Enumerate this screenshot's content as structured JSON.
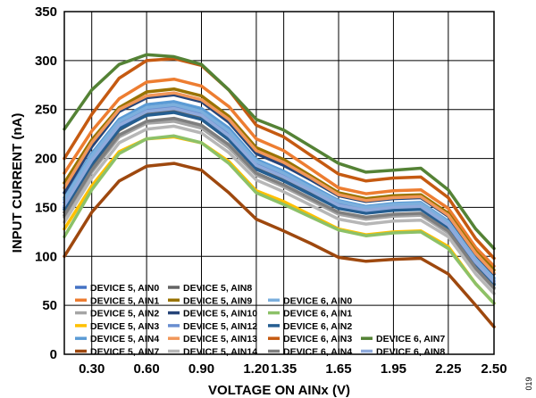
{
  "chart_data": {
    "type": "line",
    "xlabel": "VOLTAGE ON AINx (V)",
    "ylabel": "INPUT CURRENT (nA)",
    "xlim": [
      0.15,
      2.5
    ],
    "ylim": [
      0,
      350
    ],
    "x_ticks": [
      0.3,
      0.6,
      0.9,
      1.2,
      1.35,
      1.65,
      1.95,
      2.25,
      2.5
    ],
    "x_tick_labels": [
      "0.30",
      "0.60",
      "0.90",
      "1.20",
      "1.35",
      "1.65",
      "1.95",
      "2.25",
      "2.50"
    ],
    "y_ticks": [
      0,
      50,
      100,
      150,
      200,
      250,
      300,
      350
    ],
    "grid": true,
    "legend_position": "bottom-left",
    "figure_id": "019",
    "x": [
      0.15,
      0.3,
      0.45,
      0.6,
      0.75,
      0.9,
      1.05,
      1.2,
      1.35,
      1.5,
      1.65,
      1.8,
      1.95,
      2.1,
      2.25,
      2.4,
      2.5
    ],
    "series": [
      {
        "name": "DEVICE 5, AIN0",
        "color": "#4472c4",
        "values": [
          150,
          196,
          232,
          248,
          251,
          244,
          224,
          194,
          181,
          166,
          152,
          147,
          150,
          151,
          132,
          94,
          74
        ]
      },
      {
        "name": "DEVICE 5, AIN1",
        "color": "#ed7d31",
        "values": [
          185,
          228,
          261,
          278,
          281,
          274,
          253,
          220,
          208,
          189,
          170,
          164,
          167,
          168,
          149,
          109,
          90
        ]
      },
      {
        "name": "DEVICE 5, AIN2",
        "color": "#a5a5a5",
        "values": [
          140,
          186,
          222,
          236,
          238,
          231,
          211,
          183,
          171,
          157,
          143,
          138,
          141,
          142,
          124,
          87,
          67
        ]
      },
      {
        "name": "DEVICE 5, AIN3",
        "color": "#ffc000",
        "values": [
          128,
          172,
          207,
          220,
          222,
          216,
          197,
          167,
          156,
          142,
          128,
          122,
          125,
          126,
          110,
          72,
          52
        ]
      },
      {
        "name": "DEVICE 5, AIN4",
        "color": "#5b9bd5",
        "values": [
          160,
          205,
          240,
          255,
          258,
          251,
          231,
          199,
          187,
          172,
          157,
          151,
          154,
          155,
          136,
          98,
          78
        ]
      },
      {
        "name": "DEVICE 5, AIN7",
        "color": "#9e480e",
        "values": [
          100,
          145,
          177,
          192,
          195,
          188,
          165,
          138,
          126,
          113,
          99,
          95,
          97,
          98,
          82,
          50,
          28
        ]
      },
      {
        "name": "DEVICE 5, AIN8",
        "color": "#636363",
        "values": [
          145,
          192,
          229,
          245,
          248,
          241,
          220,
          190,
          178,
          164,
          150,
          145,
          148,
          149,
          130,
          92,
          72
        ]
      },
      {
        "name": "DEVICE 5, AIN9",
        "color": "#997300",
        "values": [
          175,
          219,
          252,
          268,
          271,
          264,
          243,
          211,
          199,
          182,
          165,
          159,
          162,
          163,
          144,
          105,
          86
        ]
      },
      {
        "name": "DEVICE 5, AIN10",
        "color": "#264478",
        "values": [
          165,
          212,
          248,
          262,
          265,
          258,
          237,
          205,
          193,
          178,
          162,
          156,
          159,
          160,
          141,
          102,
          82
        ]
      },
      {
        "name": "DEVICE 5, AIN12",
        "color": "#698ed0",
        "values": [
          155,
          200,
          236,
          250,
          253,
          246,
          226,
          195,
          183,
          169,
          154,
          148,
          151,
          152,
          133,
          95,
          75
        ]
      },
      {
        "name": "DEVICE 5, AIN13",
        "color": "#f1975a",
        "values": [
          170,
          216,
          250,
          264,
          267,
          260,
          240,
          208,
          196,
          180,
          163,
          157,
          160,
          161,
          142,
          103,
          83
        ]
      },
      {
        "name": "DEVICE 5, AIN14",
        "color": "#b7b7b7",
        "values": [
          135,
          180,
          216,
          230,
          233,
          226,
          206,
          178,
          166,
          152,
          138,
          133,
          136,
          137,
          120,
          82,
          62
        ]
      },
      {
        "name": "DEVICE 6, AIN0",
        "color": "#7cafdd",
        "values": [
          158,
          203,
          238,
          252,
          255,
          248,
          228,
          197,
          185,
          170,
          156,
          150,
          153,
          154,
          135,
          97,
          77
        ]
      },
      {
        "name": "DEVICE 6, AIN1",
        "color": "#8cc168",
        "values": [
          120,
          168,
          205,
          220,
          223,
          216,
          195,
          165,
          153,
          140,
          127,
          121,
          124,
          125,
          108,
          72,
          52
        ]
      },
      {
        "name": "DEVICE 6, AIN2",
        "color": "#255e91",
        "values": [
          148,
          194,
          230,
          244,
          247,
          240,
          219,
          189,
          177,
          163,
          149,
          144,
          147,
          148,
          129,
          91,
          71
        ]
      },
      {
        "name": "DEVICE 6, AIN3",
        "color": "#c55a11",
        "values": [
          200,
          245,
          282,
          300,
          302,
          295,
          270,
          234,
          222,
          203,
          184,
          177,
          180,
          181,
          160,
          118,
          98
        ]
      },
      {
        "name": "DEVICE 6, AIN4",
        "color": "#7f7f7f",
        "values": [
          142,
          188,
          224,
          238,
          241,
          234,
          214,
          185,
          173,
          159,
          145,
          140,
          143,
          144,
          126,
          88,
          68
        ]
      },
      {
        "name": "DEVICE 6, AIN7",
        "color": "#548235",
        "values": [
          230,
          270,
          296,
          306,
          304,
          296,
          270,
          240,
          229,
          212,
          195,
          186,
          188,
          190,
          168,
          128,
          108
        ]
      },
      {
        "name": "DEVICE 6, AIN8",
        "color": "#8faadc",
        "values": [
          152,
          198,
          234,
          248,
          251,
          244,
          223,
          193,
          181,
          167,
          152,
          147,
          150,
          151,
          132,
          94,
          74
        ]
      }
    ]
  }
}
